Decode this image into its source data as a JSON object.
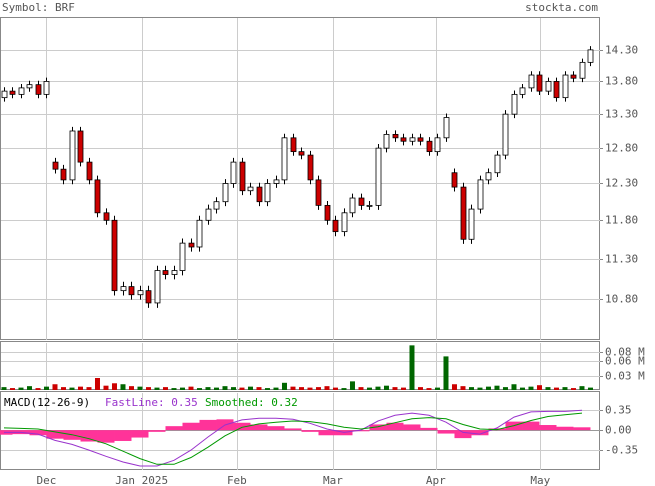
{
  "chart_data": [
    {
      "type": "candlestick",
      "title": "Symbol: BRF",
      "source": "stockta.com",
      "log_scale": true,
      "grid": true,
      "up_color": "#ffffff",
      "down_color": "#cc0000",
      "xlim": [
        -0.47,
        70.12
      ],
      "xticks": [
        {
          "value": 5,
          "label": "Dec"
        },
        {
          "value": 16.2,
          "label": "Jan 2025"
        },
        {
          "value": 27.4,
          "label": "Feb"
        },
        {
          "value": 38.7,
          "label": "Mar"
        },
        {
          "value": 50.8,
          "label": "Apr"
        },
        {
          "value": 63.1,
          "label": "May"
        }
      ],
      "ylim": [
        10.31,
        14.84
      ],
      "yticks": [
        {
          "value": 14.3,
          "label": "14.30"
        },
        {
          "value": 13.8,
          "label": "13.80"
        },
        {
          "value": 13.3,
          "label": "13.30"
        },
        {
          "value": 12.8,
          "label": "12.80"
        },
        {
          "value": 12.3,
          "label": "12.30"
        },
        {
          "value": 11.8,
          "label": "11.80"
        },
        {
          "value": 11.3,
          "label": "11.30"
        },
        {
          "value": 10.8,
          "label": "10.80"
        }
      ],
      "open": [
        13.55,
        13.65,
        13.6,
        13.7,
        13.75,
        13.6,
        12.6,
        12.5,
        12.35,
        13.05,
        12.6,
        12.35,
        11.9,
        11.8,
        10.9,
        10.95,
        10.85,
        10.9,
        10.75,
        11.15,
        11.1,
        11.15,
        11.5,
        11.45,
        11.8,
        11.95,
        12.05,
        12.3,
        12.6,
        12.2,
        12.25,
        12.05,
        12.3,
        12.35,
        12.95,
        12.75,
        12.7,
        12.35,
        12.0,
        11.8,
        11.65,
        11.9,
        12.1,
        12.0,
        12.0,
        12.8,
        13.0,
        12.95,
        12.9,
        12.95,
        12.9,
        12.75,
        12.95,
        12.45,
        12.25,
        11.55,
        11.95,
        12.35,
        12.45,
        12.7,
        13.3,
        13.6,
        13.7,
        13.9,
        13.65,
        13.8,
        13.55,
        13.9,
        13.85,
        14.1
      ],
      "high": [
        13.71,
        13.71,
        13.76,
        13.81,
        13.81,
        13.86,
        12.66,
        12.56,
        13.11,
        13.11,
        12.66,
        12.41,
        11.96,
        11.86,
        11.01,
        11.01,
        10.96,
        10.96,
        11.21,
        11.21,
        11.21,
        11.56,
        11.56,
        11.86,
        12.01,
        12.11,
        12.36,
        12.66,
        12.66,
        12.31,
        12.31,
        12.36,
        12.41,
        13.01,
        13.01,
        12.81,
        12.76,
        12.41,
        12.06,
        11.86,
        11.96,
        12.16,
        12.16,
        12.06,
        12.86,
        13.06,
        13.06,
        13.01,
        13.01,
        13.01,
        12.96,
        13.01,
        13.31,
        12.51,
        12.31,
        12.01,
        12.41,
        12.51,
        12.76,
        13.36,
        13.66,
        13.76,
        13.96,
        13.96,
        13.86,
        13.86,
        13.96,
        13.96,
        14.16,
        14.36
      ],
      "low": [
        13.49,
        13.54,
        13.54,
        13.64,
        13.54,
        13.54,
        12.44,
        12.29,
        12.29,
        12.54,
        12.29,
        11.84,
        11.74,
        10.84,
        10.84,
        10.79,
        10.79,
        10.69,
        10.69,
        11.04,
        11.04,
        11.09,
        11.39,
        11.39,
        11.74,
        11.89,
        11.99,
        12.24,
        12.14,
        12.14,
        11.99,
        11.99,
        12.24,
        12.29,
        12.69,
        12.64,
        12.29,
        11.94,
        11.74,
        11.59,
        11.59,
        11.84,
        11.94,
        11.94,
        11.94,
        12.74,
        12.89,
        12.84,
        12.84,
        12.84,
        12.69,
        12.69,
        12.89,
        12.19,
        11.49,
        11.49,
        11.89,
        12.29,
        12.39,
        12.64,
        13.24,
        13.54,
        13.64,
        13.59,
        13.59,
        13.49,
        13.49,
        13.79,
        13.79,
        14.04
      ],
      "close": [
        13.65,
        13.6,
        13.7,
        13.75,
        13.6,
        13.8,
        12.5,
        12.35,
        13.05,
        12.6,
        12.35,
        11.9,
        11.8,
        10.9,
        10.95,
        10.85,
        10.9,
        10.75,
        11.15,
        11.1,
        11.15,
        11.5,
        11.45,
        11.8,
        11.95,
        12.05,
        12.3,
        12.6,
        12.2,
        12.25,
        12.05,
        12.3,
        12.35,
        12.95,
        12.75,
        12.7,
        12.35,
        12.0,
        11.8,
        11.65,
        11.9,
        12.1,
        12.0,
        12.0,
        12.8,
        13.0,
        12.95,
        12.9,
        12.95,
        12.9,
        12.75,
        12.95,
        13.25,
        12.25,
        11.55,
        11.95,
        12.35,
        12.45,
        12.7,
        13.3,
        13.6,
        13.7,
        13.9,
        13.65,
        13.8,
        13.55,
        13.9,
        13.85,
        14.1,
        14.3
      ]
    },
    {
      "type": "bar",
      "up_color": "#006600",
      "down_color": "#cc0000",
      "grid": true,
      "ylim": [
        0,
        0.1
      ],
      "yticks": [
        {
          "value": 0.08,
          "label": "0.08 M"
        },
        {
          "value": 0.06,
          "label": "0.06 M"
        },
        {
          "value": 0.03,
          "label": "0.03 M"
        }
      ],
      "values": [
        0.006,
        0.004,
        0.005,
        0.008,
        0.004,
        0.007,
        0.012,
        0.006,
        0.005,
        0.007,
        0.006,
        0.025,
        0.009,
        0.014,
        0.012,
        0.008,
        0.007,
        0.006,
        0.005,
        0.006,
        0.004,
        0.005,
        0.007,
        0.004,
        0.006,
        0.005,
        0.008,
        0.006,
        0.005,
        0.007,
        0.006,
        0.004,
        0.005,
        0.015,
        0.007,
        0.006,
        0.005,
        0.006,
        0.008,
        0.005,
        0.004,
        0.018,
        0.006,
        0.005,
        0.007,
        0.009,
        0.006,
        0.005,
        0.093,
        0.006,
        0.004,
        0.005,
        0.07,
        0.012,
        0.008,
        0.006,
        0.005,
        0.007,
        0.009,
        0.006,
        0.012,
        0.005,
        0.007,
        0.01,
        0.006,
        0.005,
        0.006,
        0.004,
        0.008,
        0.005
      ]
    },
    {
      "type": "line",
      "title": "MACD(12-26-9)",
      "grid": true,
      "ylim": [
        -0.7,
        0.67
      ],
      "yticks": [
        0.35,
        {
          "value": 0,
          "label": "0.00"
        },
        -0.35
      ],
      "x": [
        0,
        2,
        4,
        6,
        8,
        10,
        12,
        14,
        16,
        18,
        20,
        22,
        24,
        26,
        28,
        30,
        32,
        34,
        36,
        38,
        40,
        42,
        44,
        46,
        48,
        50,
        52,
        54,
        56,
        58,
        60,
        62,
        64,
        66,
        68
      ],
      "histogram": {
        "color": "#ff3399",
        "values": [
          -0.08,
          -0.07,
          -0.09,
          -0.15,
          -0.17,
          -0.2,
          -0.22,
          -0.19,
          -0.13,
          -0.03,
          0.07,
          0.13,
          0.18,
          0.19,
          0.13,
          0.1,
          0.07,
          0.03,
          -0.03,
          -0.09,
          -0.09,
          -0.02,
          0.1,
          0.13,
          0.1,
          0.04,
          -0.06,
          -0.14,
          -0.09,
          0.03,
          0.15,
          0.15,
          0.09,
          0.06,
          0.05
        ]
      },
      "series": [
        {
          "name": "FastLine: 0.35",
          "color": "#9933cc",
          "values": [
            -0.04,
            -0.04,
            -0.07,
            -0.18,
            -0.25,
            -0.35,
            -0.46,
            -0.56,
            -0.63,
            -0.63,
            -0.53,
            -0.35,
            -0.12,
            0.09,
            0.18,
            0.21,
            0.21,
            0.19,
            0.12,
            0.02,
            -0.04,
            0.0,
            0.16,
            0.26,
            0.3,
            0.26,
            0.14,
            -0.04,
            -0.07,
            0.04,
            0.23,
            0.32,
            0.33,
            0.33,
            0.35
          ]
        },
        {
          "name": "Smoothed: 0.32",
          "color": "#009900",
          "values": [
            0.04,
            0.03,
            0.02,
            -0.03,
            -0.08,
            -0.15,
            -0.24,
            -0.37,
            -0.5,
            -0.6,
            -0.6,
            -0.48,
            -0.3,
            -0.1,
            0.05,
            0.11,
            0.14,
            0.16,
            0.15,
            0.11,
            0.05,
            0.02,
            0.06,
            0.13,
            0.2,
            0.22,
            0.2,
            0.1,
            0.02,
            0.01,
            0.08,
            0.17,
            0.24,
            0.27,
            0.3
          ]
        }
      ]
    }
  ]
}
